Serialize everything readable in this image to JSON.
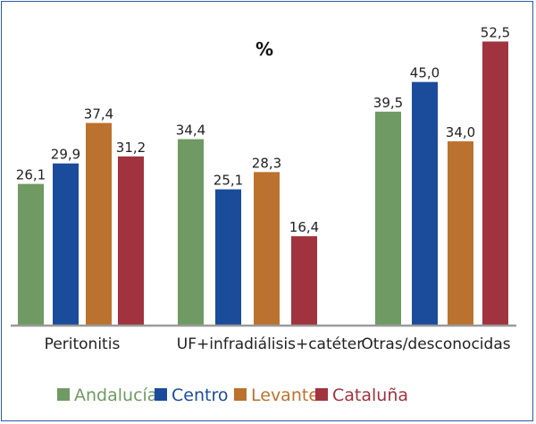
{
  "chart_data": {
    "type": "bar",
    "title": "%",
    "categories": [
      "Peritonitis",
      "UF+infradiálisis+catéter",
      "Otras/desconocidas"
    ],
    "series": [
      {
        "name": "Andalucía",
        "color": "#6f9a63",
        "values": [
          "26,1",
          "34,4",
          "39,5"
        ]
      },
      {
        "name": "Centro",
        "color": "#1b4b9b",
        "values": [
          "29,9",
          "25,1",
          "45,0"
        ]
      },
      {
        "name": "Levante",
        "color": "#bb722e",
        "values": [
          "37,4",
          "28,3",
          "34,0"
        ]
      },
      {
        "name": "Cataluña",
        "color": "#a0333d",
        "values": [
          "31,2",
          "16,4",
          "52,5"
        ]
      }
    ],
    "ylim": [
      0,
      52.5
    ],
    "grid": false,
    "legend": "bottom"
  }
}
